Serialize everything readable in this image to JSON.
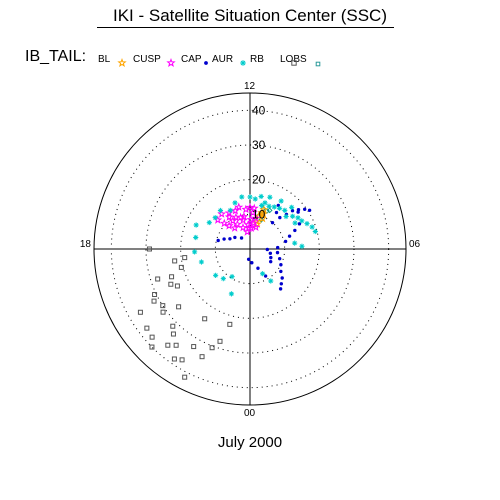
{
  "header": {
    "title": "IKI - Satellite Situation Center (SSC)"
  },
  "footer": {
    "date": "July 2000"
  },
  "legend": {
    "prefix": "IB_TAIL:",
    "items": [
      {
        "name": "BL",
        "marker": "diamond",
        "color": "#0a9a8a"
      },
      {
        "name": "CUSP",
        "marker": "star",
        "color": "#ffa500"
      },
      {
        "name": "CAP",
        "marker": "star",
        "color": "#ff00ff"
      },
      {
        "name": "AUR",
        "marker": "dot",
        "color": "#0000cd"
      },
      {
        "name": "RB",
        "marker": "asterisk",
        "color": "#00cccc"
      },
      {
        "name": "LOBS",
        "marker": "square",
        "color": "#555555"
      }
    ],
    "end_marker": {
      "marker": "square",
      "color": "#2a9a9a"
    }
  },
  "chart_data": {
    "type": "scatter",
    "projection": "polar",
    "angle_unit": "MLT hours",
    "radial_range": [
      0,
      45
    ],
    "radial_ticks": [
      10,
      20,
      30,
      40
    ],
    "hour_labels": [
      {
        "hour": 12,
        "label": "12"
      },
      {
        "hour": 18,
        "label": "18"
      },
      {
        "hour": 6,
        "label": "06"
      },
      {
        "hour": 0,
        "label": "00"
      }
    ],
    "grid": true,
    "series": [
      {
        "name": "BL",
        "points": [
          [
            10.2,
            12.5
          ],
          [
            10.4,
            12.0
          ],
          [
            10.6,
            9.0
          ],
          [
            10.8,
            12.3
          ],
          [
            10.9,
            10.5
          ]
        ]
      },
      {
        "name": "CUSP",
        "points": [
          [
            10.5,
            9.5
          ],
          [
            10.6,
            10.8
          ],
          [
            10.8,
            11.0
          ],
          [
            11.0,
            9.8
          ],
          [
            10.7,
            12.0
          ],
          [
            10.9,
            7.5
          ],
          [
            11.1,
            8.2
          ]
        ]
      },
      {
        "name": "CAP",
        "points": [
          [
            12.6,
            5.0
          ],
          [
            13.2,
            6.5
          ],
          [
            13.8,
            8.0
          ],
          [
            14.4,
            7.5
          ],
          [
            14.8,
            9.0
          ],
          [
            15.0,
            10.5
          ],
          [
            14.2,
            11.0
          ],
          [
            13.6,
            10.0
          ],
          [
            12.9,
            8.5
          ],
          [
            12.3,
            7.0
          ],
          [
            11.8,
            6.0
          ],
          [
            11.5,
            7.5
          ],
          [
            11.3,
            9.0
          ],
          [
            11.0,
            6.5
          ],
          [
            11.7,
            10.5
          ],
          [
            12.0,
            12.0
          ],
          [
            12.4,
            11.5
          ],
          [
            13.0,
            12.5
          ],
          [
            13.4,
            11.8
          ],
          [
            14.0,
            12.0
          ],
          [
            14.6,
            13.0
          ],
          [
            15.2,
            12.5
          ],
          [
            12.7,
            9.5
          ],
          [
            11.6,
            11.8
          ],
          [
            11.9,
            8.5
          ],
          [
            12.2,
            6.0
          ],
          [
            13.1,
            9.5
          ],
          [
            14.1,
            9.5
          ]
        ]
      },
      {
        "name": "AUR",
        "points": [
          [
            8.8,
            16.5
          ],
          [
            8.6,
            18.0
          ],
          [
            8.4,
            19.5
          ],
          [
            8.2,
            20.5
          ],
          [
            8.5,
            17.5
          ],
          [
            8.9,
            14.5
          ],
          [
            9.1,
            12.5
          ],
          [
            9.3,
            10.0
          ],
          [
            9.6,
            13.0
          ],
          [
            9.8,
            15.0
          ],
          [
            7.8,
            16.0
          ],
          [
            7.5,
            14.0
          ],
          [
            7.2,
            12.0
          ],
          [
            6.8,
            10.5
          ],
          [
            6.2,
            8.0
          ],
          [
            5.5,
            8.0
          ],
          [
            4.8,
            9.0
          ],
          [
            4.2,
            10.0
          ],
          [
            3.6,
            11.0
          ],
          [
            3.2,
            12.5
          ],
          [
            2.8,
            13.5
          ],
          [
            2.5,
            14.5
          ],
          [
            5.9,
            5.0
          ],
          [
            5.2,
            6.0
          ],
          [
            4.5,
            6.5
          ],
          [
            3.9,
            7.0
          ],
          [
            17.0,
            9.5
          ],
          [
            16.6,
            8.0
          ],
          [
            16.2,
            6.5
          ],
          [
            15.5,
            5.5
          ],
          [
            14.5,
            4.0
          ],
          [
            0.5,
            4.0
          ],
          [
            23.5,
            3.0
          ],
          [
            1.5,
            6.0
          ],
          [
            2.0,
            9.0
          ]
        ]
      },
      {
        "name": "RB",
        "points": [
          [
            12.0,
            15.0
          ],
          [
            11.6,
            14.5
          ],
          [
            11.2,
            15.5
          ],
          [
            10.8,
            14.0
          ],
          [
            10.4,
            13.5
          ],
          [
            10.0,
            14.0
          ],
          [
            9.6,
            14.5
          ],
          [
            9.2,
            15.0
          ],
          [
            8.8,
            14.0
          ],
          [
            8.5,
            15.5
          ],
          [
            8.2,
            16.5
          ],
          [
            7.9,
            17.0
          ],
          [
            7.6,
            18.0
          ],
          [
            7.3,
            19.0
          ],
          [
            7.0,
            19.5
          ],
          [
            12.6,
            15.2
          ],
          [
            13.2,
            14.0
          ],
          [
            13.8,
            12.5
          ],
          [
            14.5,
            14.0
          ],
          [
            15.2,
            13.5
          ],
          [
            15.8,
            14.0
          ],
          [
            16.4,
            17.0
          ],
          [
            17.2,
            16.0
          ],
          [
            18.2,
            16.0
          ],
          [
            19.0,
            14.5
          ],
          [
            20.5,
            12.5
          ],
          [
            21.2,
            11.5
          ],
          [
            21.8,
            9.5
          ],
          [
            22.5,
            14.0
          ],
          [
            1.8,
            8.0
          ],
          [
            2.2,
            11.0
          ],
          [
            6.5,
            13.0
          ],
          [
            6.2,
            15.0
          ],
          [
            10.6,
            16.0
          ],
          [
            11.0,
            13.0
          ],
          [
            9.8,
            16.5
          ],
          [
            9.0,
            17.0
          ],
          [
            8.0,
            15.0
          ]
        ]
      },
      {
        "name": "LOBS",
        "points": [
          [
            18.0,
            29.0
          ],
          [
            18.5,
            19.0
          ],
          [
            18.6,
            22.0
          ],
          [
            19.0,
            20.5
          ],
          [
            19.3,
            24.0
          ],
          [
            19.2,
            28.0
          ],
          [
            19.6,
            25.0
          ],
          [
            19.9,
            31.5
          ],
          [
            19.7,
            30.5
          ],
          [
            20.0,
            36.5
          ],
          [
            19.8,
            23.5
          ],
          [
            20.2,
            30.0
          ],
          [
            20.4,
            31.0
          ],
          [
            20.5,
            37.5
          ],
          [
            20.8,
            38.0
          ],
          [
            21.0,
            31.5
          ],
          [
            21.0,
            40.0
          ],
          [
            21.2,
            33.0
          ],
          [
            21.3,
            36.5
          ],
          [
            21.5,
            35.0
          ],
          [
            21.7,
            38.5
          ],
          [
            21.9,
            37.5
          ],
          [
            22.0,
            32.5
          ],
          [
            22.2,
            41.5
          ],
          [
            22.4,
            34.0
          ],
          [
            22.6,
            30.5
          ],
          [
            22.8,
            28.0
          ],
          [
            23.0,
            22.5
          ],
          [
            20.6,
            26.5
          ],
          [
            21.8,
            24.0
          ]
        ]
      }
    ]
  }
}
